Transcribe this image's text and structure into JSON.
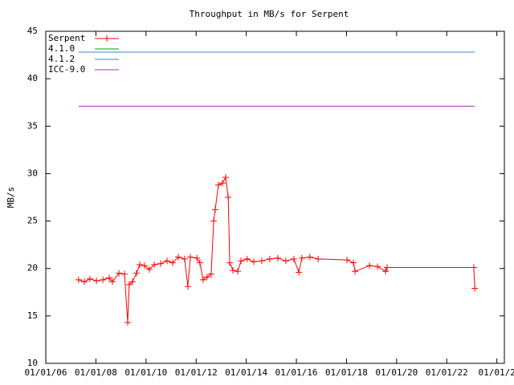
{
  "chart_data": {
    "type": "line",
    "title": "Throughput in MB/s for Serpent",
    "y_label": "MB/s",
    "xlim": [
      2006,
      2024.3
    ],
    "ylim": [
      10,
      45
    ],
    "yticks": [
      10,
      15,
      20,
      25,
      30,
      35,
      40,
      45
    ],
    "xticks": [
      {
        "value": 2006,
        "label": "01/01/06"
      },
      {
        "value": 2008,
        "label": "01/01/08"
      },
      {
        "value": 2010,
        "label": "01/01/10"
      },
      {
        "value": 2012,
        "label": "01/01/12"
      },
      {
        "value": 2014,
        "label": "01/01/14"
      },
      {
        "value": 2016,
        "label": "01/01/16"
      },
      {
        "value": 2018,
        "label": "01/01/18"
      },
      {
        "value": 2020,
        "label": "01/01/20"
      },
      {
        "value": 2022,
        "label": "01/01/22"
      },
      {
        "value": 2024,
        "label": "01/01/2"
      }
    ],
    "grid": false,
    "legend": "top-left",
    "series": [
      {
        "name": "Serpent",
        "color": "#ff0000",
        "marker": "+",
        "x": [
          2007.31,
          2007.54,
          2007.76,
          2008.02,
          2008.28,
          2008.53,
          2008.66,
          2008.92,
          2009.14,
          2009.27,
          2009.33,
          2009.46,
          2009.62,
          2009.75,
          2009.94,
          2010.13,
          2010.33,
          2010.58,
          2010.84,
          2011.06,
          2011.29,
          2011.54,
          2011.67,
          2011.77,
          2012.03,
          2012.15,
          2012.28,
          2012.44,
          2012.6,
          2012.7,
          2012.76,
          2012.89,
          2013.05,
          2013.18,
          2013.28,
          2013.34,
          2013.47,
          2013.66,
          2013.79,
          2014.04,
          2014.3,
          2014.62,
          2014.94,
          2015.26,
          2015.58,
          2015.9,
          2016.1,
          2016.22,
          2016.54,
          2016.87,
          2018.02,
          2018.28,
          2018.34,
          2018.92,
          2019.24,
          2019.56,
          2019.62,
          2023.08,
          2023.12
        ],
        "values": [
          18.8,
          18.6,
          18.9,
          18.7,
          18.8,
          19.0,
          18.6,
          19.5,
          19.4,
          14.3,
          18.3,
          18.6,
          19.5,
          20.4,
          20.3,
          19.9,
          20.4,
          20.5,
          20.8,
          20.6,
          21.2,
          21.0,
          18.1,
          21.2,
          21.1,
          20.6,
          18.8,
          19.1,
          19.4,
          25.0,
          26.2,
          28.8,
          29.0,
          29.6,
          27.5,
          20.6,
          19.8,
          19.7,
          20.8,
          21.0,
          20.7,
          20.8,
          21.0,
          21.1,
          20.8,
          21.0,
          19.6,
          21.1,
          21.2,
          21.0,
          20.9,
          20.6,
          19.7,
          20.3,
          20.2,
          19.7,
          20.1,
          20.1,
          17.9
        ]
      },
      {
        "name": "4.1.0",
        "color": "#00a000",
        "x": [
          2007.31,
          2023.12
        ],
        "values": [
          42.8,
          42.8
        ]
      },
      {
        "name": "4.1.2",
        "color": "#3a87c8",
        "x": [
          2007.31,
          2023.12
        ],
        "values": [
          42.8,
          42.8
        ]
      },
      {
        "name": "ICC-9.0",
        "color": "#b030c0",
        "x": [
          2007.31,
          2023.12
        ],
        "values": [
          37.1,
          37.1
        ]
      }
    ]
  }
}
